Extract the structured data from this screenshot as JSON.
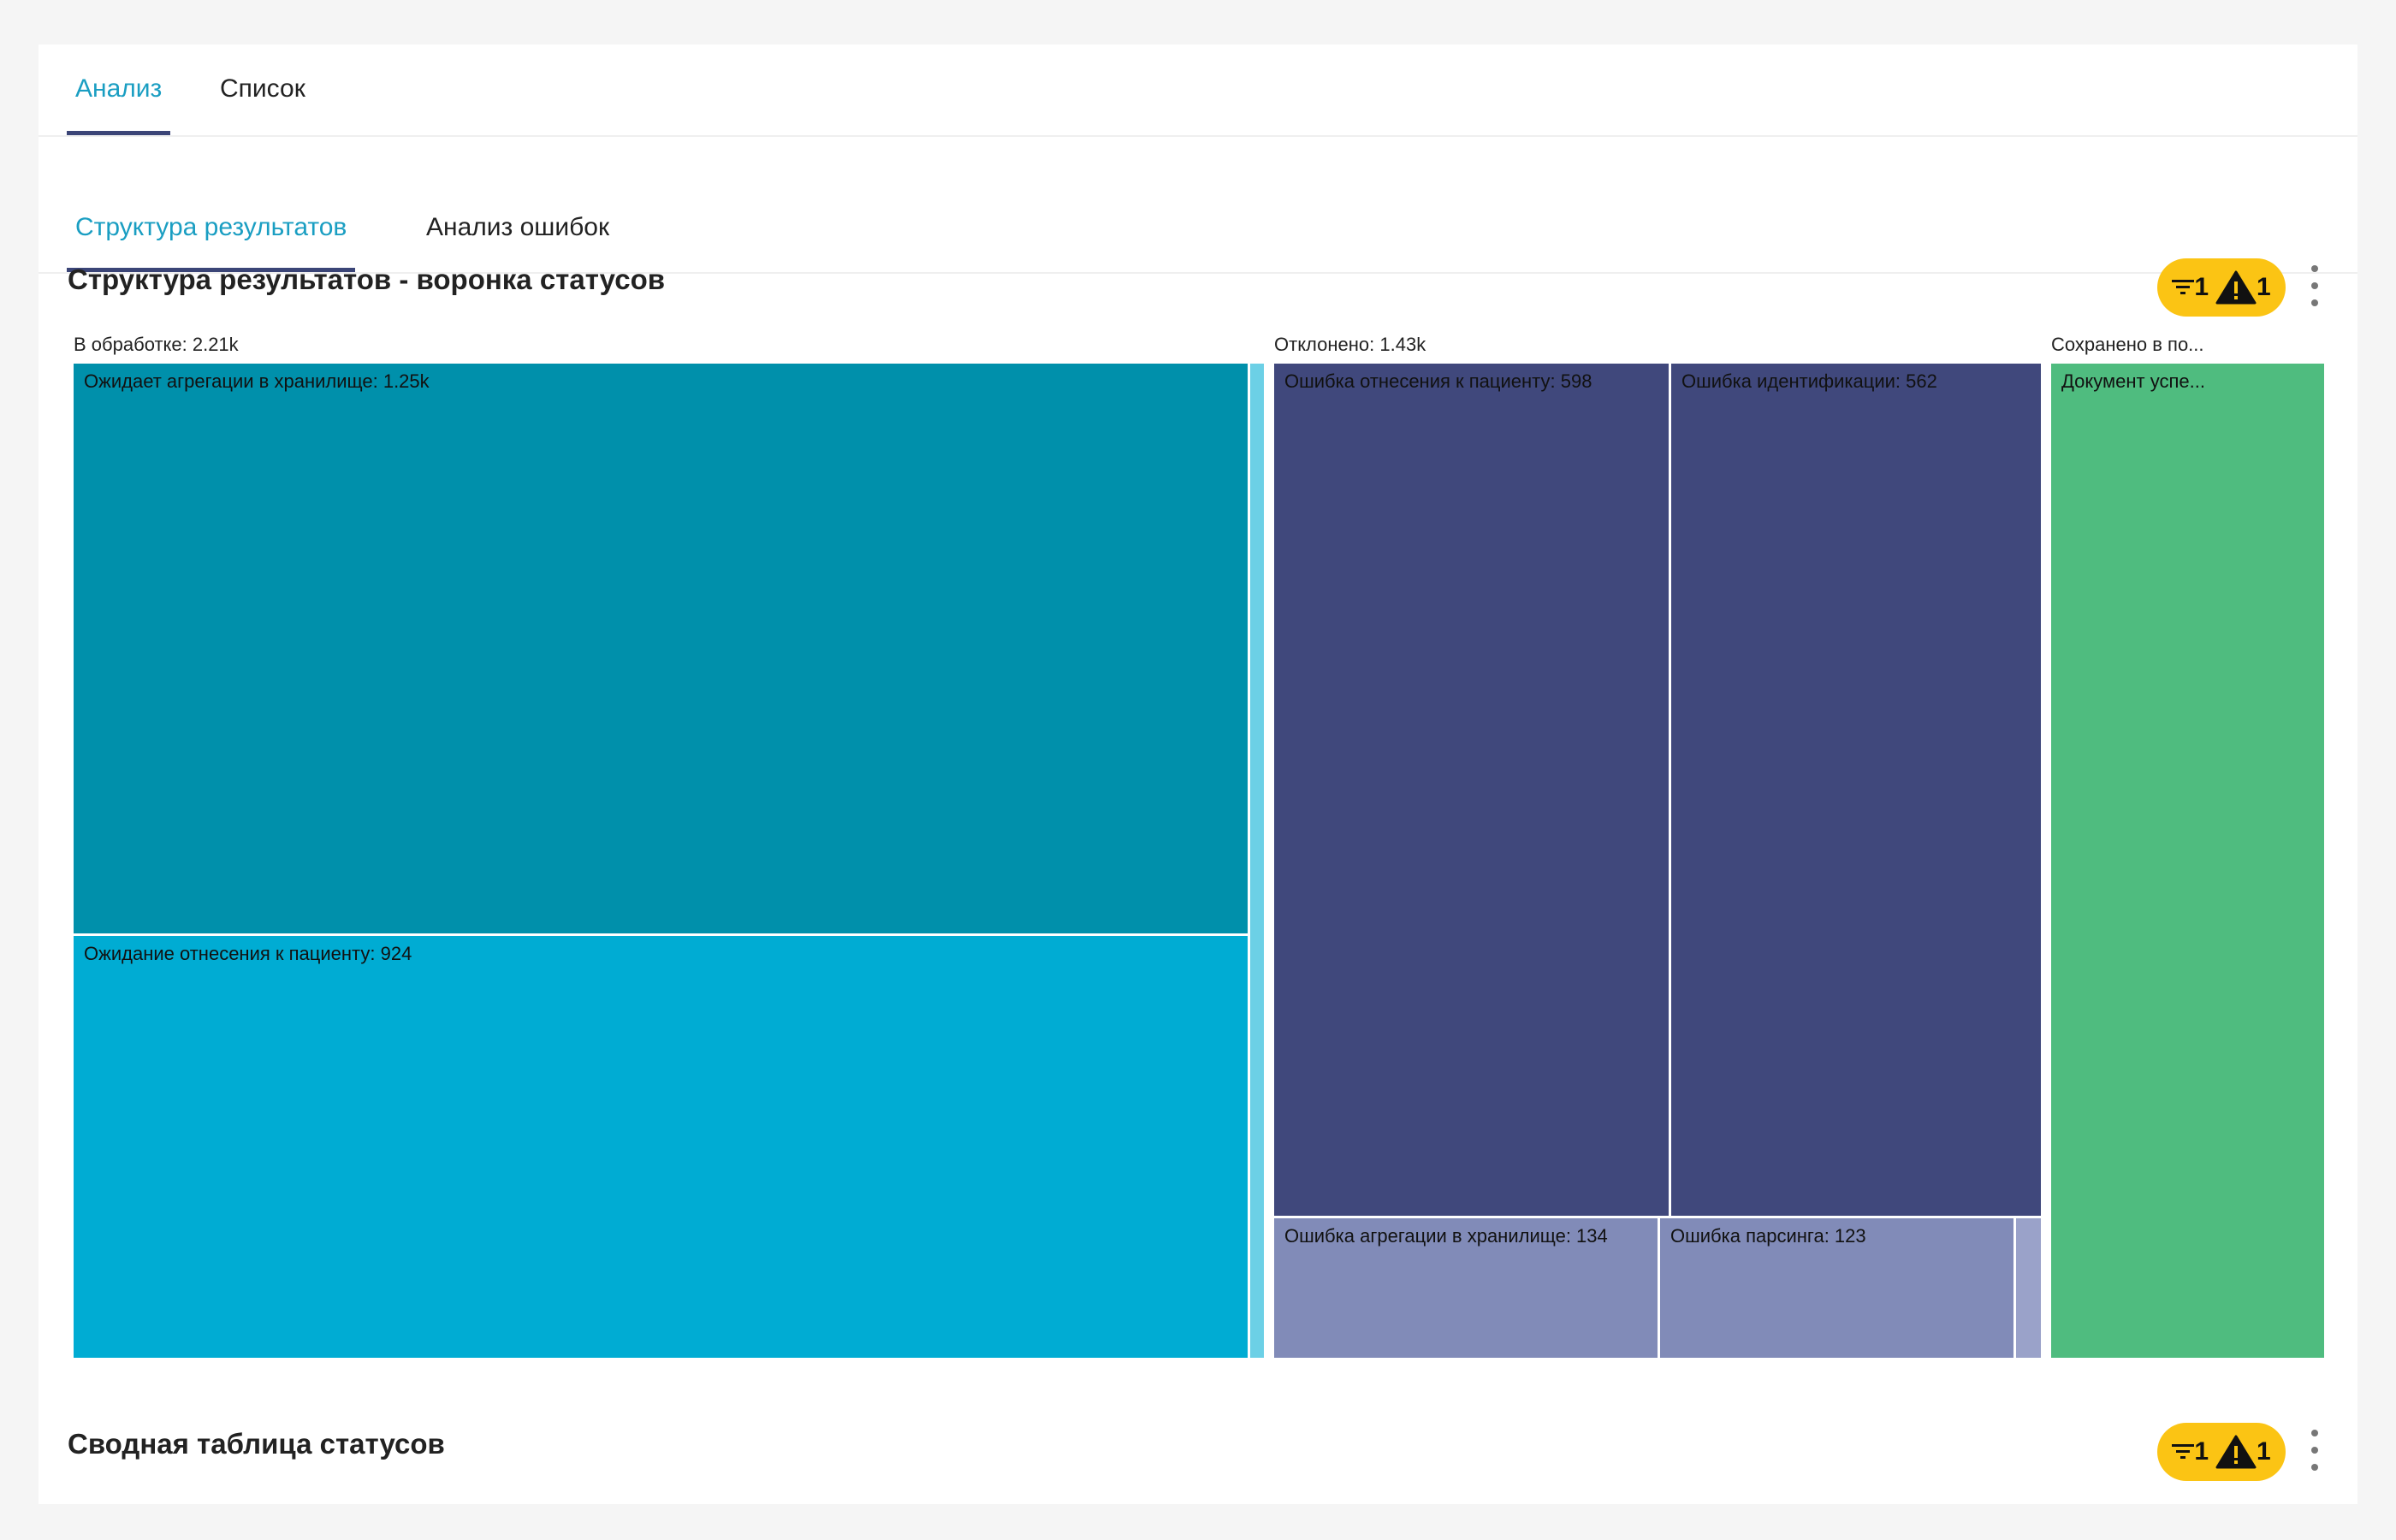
{
  "tabs_main": [
    {
      "label": "Анализ",
      "active": true
    },
    {
      "label": "Список",
      "active": false
    }
  ],
  "tabs_sub": [
    {
      "label": "Структура результатов",
      "active": true
    },
    {
      "label": "Анализ ошибок",
      "active": false
    }
  ],
  "sections": [
    {
      "title": "Структура результатов - воронка статусов",
      "badge": {
        "filter_count": "1",
        "warning_count": "1"
      }
    },
    {
      "title": "Сводная таблица статусов",
      "badge": {
        "filter_count": "1",
        "warning_count": "1"
      }
    }
  ],
  "chart_data": {
    "type": "treemap",
    "groups": [
      {
        "name": "В обработке",
        "label": "В обработке: 2.21k",
        "value": 2210,
        "color": "#00a9d0",
        "children": [
          {
            "name": "Ожидает агрегации в хранилище",
            "label": "Ожидает агрегации в хранилище: 1.25k",
            "value": 1250,
            "color": "#0090ab"
          },
          {
            "name": "Ожидание отнесения к пациенту",
            "label": "Ожидание отнесения к пациенту: 924",
            "value": 924,
            "color": "#00acd3"
          },
          {
            "name": "",
            "label": "",
            "value": 36,
            "color": "#6cd0e6"
          }
        ]
      },
      {
        "name": "Отклонено",
        "label": "Отклонено: 1.43k",
        "value": 1430,
        "color": "#40487c",
        "children": [
          {
            "name": "Ошибка отнесения к пациенту",
            "label": "Ошибка отнесения к пациенту: 598",
            "value": 598,
            "color": "#40487c"
          },
          {
            "name": "Ошибка идентификации",
            "label": "Ошибка идентификации: 562",
            "value": 562,
            "color": "#40487c"
          },
          {
            "name": "Ошибка агрегации в хранилище",
            "label": "Ошибка агрегации в хранилище: 134",
            "value": 134,
            "color": "#818bb8"
          },
          {
            "name": "Ошибка парсинга",
            "label": "Ошибка парсинга: 123",
            "value": 123,
            "color": "#818bb8"
          },
          {
            "name": "",
            "label": "",
            "value": 13,
            "color": "#9aa2c9"
          }
        ]
      },
      {
        "name": "Сохранено в по...",
        "label": "Сохранено в по...",
        "value": 500,
        "color": "#4fbc7f",
        "children": [
          {
            "name": "Документ успе...",
            "label": "Документ успе...",
            "value": 500,
            "color": "#4fbc7f"
          }
        ]
      }
    ]
  }
}
